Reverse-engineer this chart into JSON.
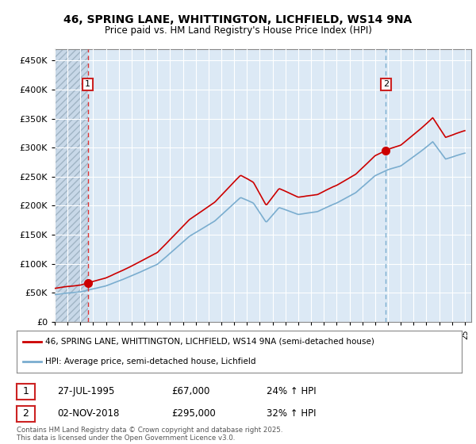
{
  "title_line1": "46, SPRING LANE, WHITTINGTON, LICHFIELD, WS14 9NA",
  "title_line2": "Price paid vs. HM Land Registry's House Price Index (HPI)",
  "red_line_color": "#cc0000",
  "blue_line_color": "#7aadcf",
  "dashed_red_color": "#dd3333",
  "dashed_blue_color": "#7aadcf",
  "sale1_year": 1995.57,
  "sale1_price": 67000,
  "sale2_year": 2018.84,
  "sale2_price": 295000,
  "ylim_max": 470000,
  "ylim_min": 0,
  "xlim_min": 1993.0,
  "xlim_max": 2025.5,
  "legend_label1": "46, SPRING LANE, WHITTINGTON, LICHFIELD, WS14 9NA (semi-detached house)",
  "legend_label2": "HPI: Average price, semi-detached house, Lichfield",
  "table_row1": [
    "1",
    "27-JUL-1995",
    "£67,000",
    "24% ↑ HPI"
  ],
  "table_row2": [
    "2",
    "02-NOV-2018",
    "£295,000",
    "32% ↑ HPI"
  ],
  "footer": "Contains HM Land Registry data © Crown copyright and database right 2025.\nThis data is licensed under the Open Government Licence v3.0.",
  "chart_bg": "#dce9f5",
  "hatch_color": "#c0ccd8"
}
